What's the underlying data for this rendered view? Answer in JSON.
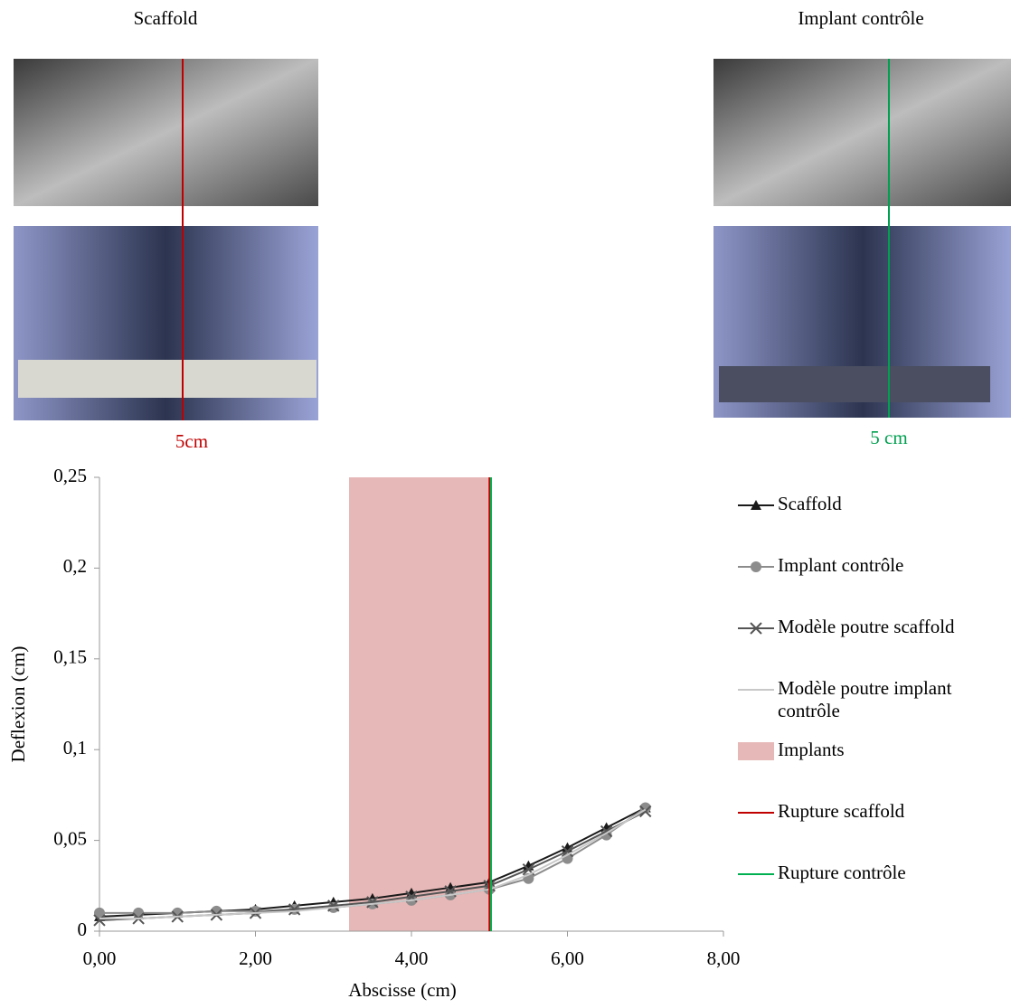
{
  "panels": [
    {
      "title": "Scaffold",
      "label": "5cm",
      "color": "#c00000"
    },
    {
      "title": "Implant contrôle",
      "label": "5 cm",
      "color": "#00a050"
    }
  ],
  "chart_data": {
    "type": "line",
    "xlabel": "Abscisse (cm)",
    "ylabel": "Deflexion (cm)",
    "x": [
      0,
      0.5,
      1,
      1.5,
      2,
      2.5,
      3,
      3.5,
      4,
      4.5,
      5,
      5.5,
      6,
      6.5,
      7
    ],
    "series": [
      {
        "name": "Scaffold",
        "color": "#1a1a1a",
        "marker": "triangle",
        "values": [
          0.008,
          0.009,
          0.01,
          0.011,
          0.012,
          0.014,
          0.016,
          0.018,
          0.021,
          0.024,
          0.027,
          0.036,
          0.046,
          0.057,
          0.068
        ]
      },
      {
        "name": "Implant contrôle",
        "color": "#8c8c8c",
        "marker": "circle",
        "values": [
          0.01,
          0.01,
          0.01,
          0.011,
          0.011,
          0.012,
          0.013,
          0.015,
          0.017,
          0.02,
          0.023,
          0.029,
          0.04,
          0.053,
          0.068
        ]
      },
      {
        "name": "Modèle poutre scaffold",
        "color": "#555555",
        "marker": "x",
        "values": [
          0.006,
          0.007,
          0.008,
          0.009,
          0.01,
          0.012,
          0.014,
          0.016,
          0.019,
          0.022,
          0.025,
          0.034,
          0.044,
          0.055,
          0.066
        ]
      },
      {
        "name": "Modèle poutre implant contrôle",
        "color": "#c8c8c8",
        "marker": "none",
        "values": [
          0.007,
          0.007,
          0.008,
          0.009,
          0.01,
          0.011,
          0.013,
          0.015,
          0.017,
          0.02,
          0.023,
          0.031,
          0.042,
          0.054,
          0.067
        ]
      }
    ],
    "band": {
      "name": "Implants",
      "xrange": [
        3.2,
        5.0
      ],
      "color": "#e6b8b7"
    },
    "vlines": [
      {
        "name": "Rupture scaffold",
        "x": 5.0,
        "color": "#c00000"
      },
      {
        "name": "Rupture contrôle",
        "x": 5.02,
        "color": "#00b050"
      }
    ],
    "xlim": [
      0,
      8
    ],
    "ylim": [
      0,
      0.25
    ],
    "xticks": [
      {
        "value": 0,
        "label": "0,00"
      },
      {
        "value": 2,
        "label": "2,00"
      },
      {
        "value": 4,
        "label": "4,00"
      },
      {
        "value": 6,
        "label": "6,00"
      },
      {
        "value": 8,
        "label": "8,00"
      }
    ],
    "yticks": [
      0,
      {
        "value": 0.05,
        "label": "0,05"
      },
      {
        "value": 0.1,
        "label": "0,1"
      },
      {
        "value": 0.15,
        "label": "0,15"
      },
      {
        "value": 0.2,
        "label": "0,2"
      },
      {
        "value": 0.25,
        "label": "0,25"
      }
    ],
    "grid": false
  }
}
